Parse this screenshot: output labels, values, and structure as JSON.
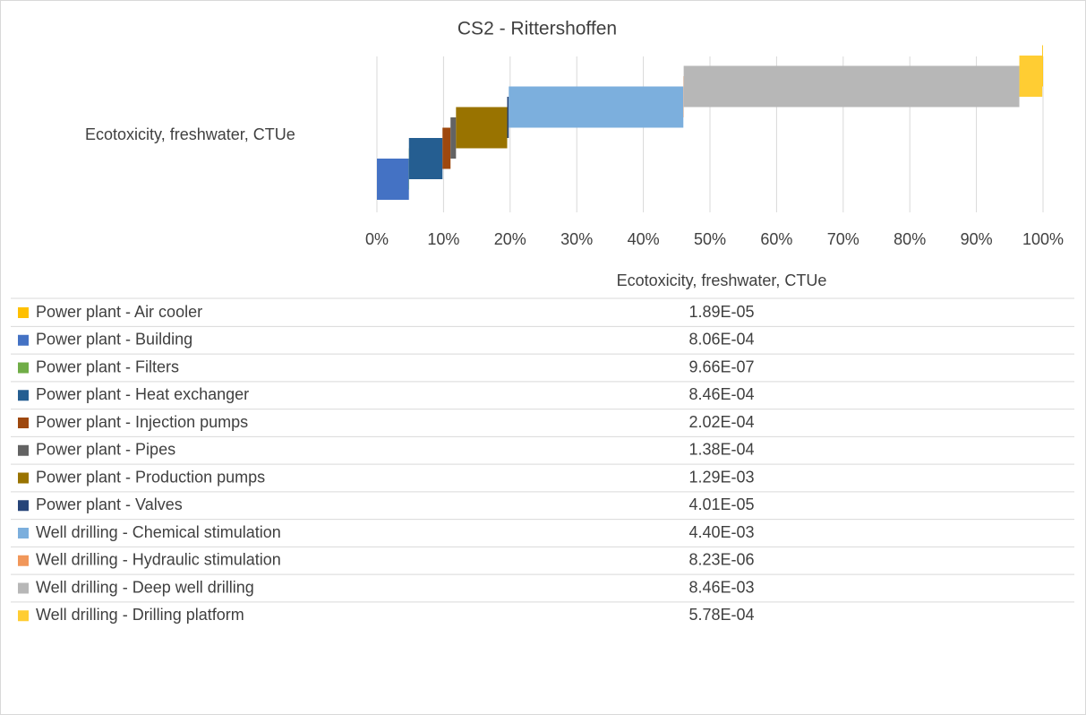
{
  "chart_data": {
    "type": "waterfall",
    "title": "CS2 - Rittershoffen",
    "categories": [
      "Ecotoxicity, freshwater, CTUe"
    ],
    "xlim": [
      0,
      100
    ],
    "xticks": [
      {
        "value": 0,
        "label": "0%"
      },
      {
        "value": 10,
        "label": "10%"
      },
      {
        "value": 20,
        "label": "20%"
      },
      {
        "value": 30,
        "label": "30%"
      },
      {
        "value": 40,
        "label": "40%"
      },
      {
        "value": 50,
        "label": "50%"
      },
      {
        "value": 60,
        "label": "60%"
      },
      {
        "value": 70,
        "label": "70%"
      },
      {
        "value": 80,
        "label": "80%"
      },
      {
        "value": 90,
        "label": "90%"
      },
      {
        "value": 100,
        "label": "100%"
      }
    ],
    "grid": true,
    "series": [
      {
        "name": "Power plant - Air cooler",
        "color": "#FFC000",
        "values": [
          1.89e-05
        ],
        "value_labels": [
          "1.89E-05"
        ]
      },
      {
        "name": "Power plant - Building",
        "color": "#4472C4",
        "values": [
          0.000806
        ],
        "value_labels": [
          "8.06E-04"
        ]
      },
      {
        "name": "Power plant - Filters",
        "color": "#70AD47",
        "values": [
          9.66e-07
        ],
        "value_labels": [
          "9.66E-07"
        ]
      },
      {
        "name": "Power plant - Heat exchanger",
        "color": "#255E91",
        "values": [
          0.000846
        ],
        "value_labels": [
          "8.46E-04"
        ]
      },
      {
        "name": "Power plant - Injection pumps",
        "color": "#9E480E",
        "values": [
          0.000202
        ],
        "value_labels": [
          "2.02E-04"
        ]
      },
      {
        "name": "Power plant - Pipes",
        "color": "#636363",
        "values": [
          0.000138
        ],
        "value_labels": [
          "1.38E-04"
        ]
      },
      {
        "name": "Power plant - Production pumps",
        "color": "#997300",
        "values": [
          0.00129
        ],
        "value_labels": [
          "1.29E-03"
        ]
      },
      {
        "name": "Power plant - Valves",
        "color": "#264478",
        "values": [
          4.01e-05
        ],
        "value_labels": [
          "4.01E-05"
        ]
      },
      {
        "name": "Well drilling - Chemical stimulation",
        "color": "#7CAFDD",
        "values": [
          0.0044
        ],
        "value_labels": [
          "4.40E-03"
        ]
      },
      {
        "name": "Well drilling - Hydraulic stimulation",
        "color": "#F1975A",
        "values": [
          8.23e-06
        ],
        "value_labels": [
          "8.23E-06"
        ]
      },
      {
        "name": "Well drilling - Deep well drilling",
        "color": "#B7B7B7",
        "values": [
          0.00846
        ],
        "value_labels": [
          "8.46E-03"
        ]
      },
      {
        "name": "Well drilling - Drilling platform",
        "color": "#FFCD33",
        "values": [
          0.000578
        ],
        "value_labels": [
          "5.78E-04"
        ]
      }
    ]
  }
}
